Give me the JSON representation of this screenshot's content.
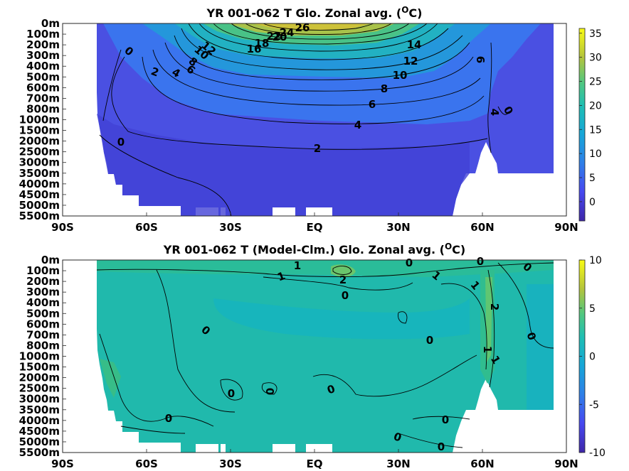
{
  "chart_data": [
    {
      "type": "heatmap",
      "title": "YR 001-062 T Glo. Zonal avg. (",
      "title_sup": "O",
      "title_end": "C)",
      "x_ticks": [
        "90S",
        "60S",
        "30S",
        "EQ",
        "30N",
        "60N",
        "90N"
      ],
      "y_ticks": [
        "0m",
        "100m",
        "200m",
        "300m",
        "400m",
        "500m",
        "600m",
        "700m",
        "800m",
        "1000m",
        "1500m",
        "2000m",
        "2500m",
        "3000m",
        "3500m",
        "4000m",
        "4500m",
        "5000m",
        "5500m"
      ],
      "colorbar_ticks": [
        "35",
        "30",
        "25",
        "20",
        "15",
        "10",
        "5",
        "0"
      ],
      "colorbar_range": [
        -4,
        36
      ],
      "contour_levels": [
        0,
        2,
        4,
        6,
        8,
        10,
        12,
        14,
        16,
        18,
        20,
        22,
        24,
        26
      ],
      "contour_labels": [
        "26",
        "24",
        "22",
        "20",
        "18",
        "16",
        "14",
        "12",
        "10",
        "8",
        "6",
        "4",
        "2",
        "0",
        "12",
        "10",
        "8",
        "6",
        "4",
        "2",
        "0",
        "6",
        "4",
        "0"
      ]
    },
    {
      "type": "heatmap",
      "title": "YR 001-062 T (Model-Clm.) Glo. Zonal avg. (",
      "title_sup": "O",
      "title_end": "C)",
      "x_ticks": [
        "90S",
        "60S",
        "30S",
        "EQ",
        "30N",
        "60N",
        "90N"
      ],
      "y_ticks": [
        "0m",
        "100m",
        "200m",
        "300m",
        "400m",
        "500m",
        "600m",
        "700m",
        "800m",
        "1000m",
        "1500m",
        "2000m",
        "2500m",
        "3000m",
        "3500m",
        "4000m",
        "4500m",
        "5000m",
        "5500m"
      ],
      "colorbar_ticks": [
        "10",
        "5",
        "0",
        "-5",
        "-10"
      ],
      "colorbar_range": [
        -10,
        10
      ],
      "contour_levels": [
        -1,
        0,
        1,
        2
      ],
      "contour_labels": [
        "1",
        "1",
        "2",
        "0",
        "0",
        "1",
        "0",
        "0",
        "1",
        "0",
        "2",
        "0",
        "1",
        "1",
        "0",
        "0",
        "0",
        "0",
        "0",
        "0",
        "0",
        "0"
      ]
    }
  ]
}
